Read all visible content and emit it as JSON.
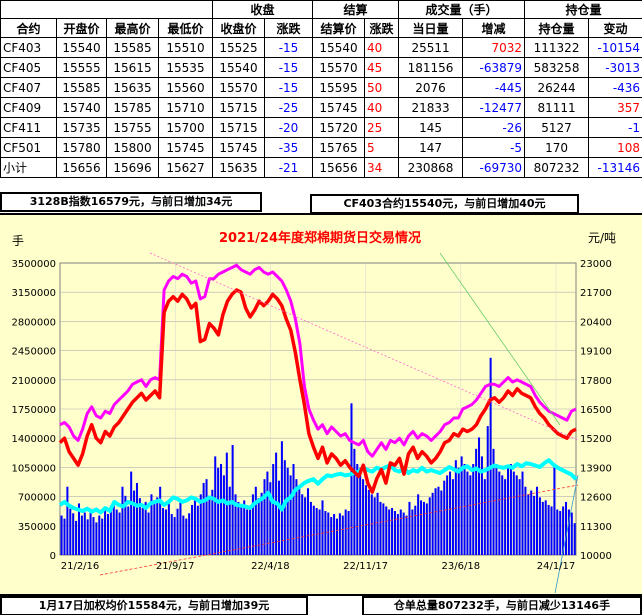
{
  "table": {
    "headers_top": [
      "收盘",
      "结算",
      "成交量（手）",
      "持仓量"
    ],
    "headers": [
      "合约",
      "开盘价",
      "最高价",
      "最低价",
      "收盘价",
      "涨跌",
      "结算价",
      "涨跌",
      "当日量",
      "增减",
      "持仓量",
      "变动"
    ],
    "rows": [
      [
        "CF403",
        "15540",
        "15585",
        "15510",
        "15525",
        "-15",
        "15540",
        "40",
        "25511",
        "7032",
        "111322",
        "-10154"
      ],
      [
        "CF405",
        "15555",
        "15615",
        "15535",
        "15540",
        "-15",
        "15570",
        "45",
        "181156",
        "-63879",
        "583258",
        "-3013"
      ],
      [
        "CF407",
        "15585",
        "15635",
        "15560",
        "15570",
        "-15",
        "15595",
        "50",
        "2076",
        "-445",
        "26244",
        "-436"
      ],
      [
        "CF409",
        "15740",
        "15785",
        "15710",
        "15715",
        "-25",
        "15745",
        "40",
        "21833",
        "-12477",
        "81111",
        "357"
      ],
      [
        "CF411",
        "15735",
        "15755",
        "15700",
        "15715",
        "-20",
        "15720",
        "25",
        "145",
        "-26",
        "5127",
        "-1"
      ],
      [
        "CF501",
        "15780",
        "15800",
        "15745",
        "15745",
        "-35",
        "15765",
        "5",
        "147",
        "-5",
        "170",
        "108"
      ],
      [
        "小计",
        "15656",
        "15696",
        "15627",
        "15635",
        "-21",
        "15656",
        "34",
        "230868",
        "-69730",
        "807232",
        "-13146"
      ]
    ]
  },
  "info": {
    "index_text": "3128B指数16579元，与前日增加34元",
    "contract_text": "CF403合约15540元，与前日增加40元",
    "avg_text": "1月17日加权均价15584元，与前日增加39元",
    "oi_text": "仓单总量807232手，与前日减少13146手"
  },
  "colors": {
    "background": "#ffffcc",
    "volume": "#0000ff",
    "price": "#ff0000",
    "high_line": "#ff00ff",
    "open_interest": "#00ffff",
    "title": "#ff0000"
  },
  "chart_data": {
    "type": "line",
    "title": "2021/24年度郑棉期货日交易情况",
    "ylabel": "手",
    "y2label": "元/吨",
    "ylim": [
      0,
      3850000
    ],
    "y2lim": [
      10000,
      23000
    ],
    "yticks": [
      "0",
      "350000",
      "700000",
      "1050000",
      "1400000",
      "1750000",
      "2100000",
      "2450000",
      "2800000",
      "3150000",
      "3500000"
    ],
    "y2ticks": [
      "10000",
      "11300",
      "12600",
      "13900",
      "15200",
      "16500",
      "17800",
      "19100",
      "20400",
      "21700",
      "23000"
    ],
    "xticks": [
      "21/2/16",
      "21/9/17",
      "22/4/18",
      "22/11/17",
      "23/6/18",
      "24/1/17"
    ],
    "series": [
      {
        "key": "volume",
        "type": "bar",
        "axis": "left",
        "values": [
          520000,
          480000,
          900000,
          610000,
          550000,
          450000,
          680000,
          520000,
          560000,
          470000,
          610000,
          500000,
          430000,
          520000,
          480000,
          600000,
          540000,
          650000,
          700000,
          600000,
          560000,
          900000,
          780000,
          640000,
          1100000,
          850000,
          950000,
          750000,
          620000,
          700000,
          560000,
          800000,
          720000,
          760000,
          900000,
          620000,
          600000,
          680000,
          540000,
          500000,
          610000,
          700000,
          520000,
          480000,
          550000,
          660000,
          720000,
          650000,
          800000,
          950000,
          1000000,
          780000,
          860000,
          1300000,
          1150000,
          1200000,
          1050000,
          1350000,
          900000,
          1450000,
          800000,
          700000,
          640000,
          720000,
          600000,
          650000,
          800000,
          900000,
          750000,
          820000,
          1000000,
          1100000,
          960000,
          1200000,
          1350000,
          980000,
          1500000,
          1250000,
          1150000,
          1050000,
          1200000,
          1000000,
          900000,
          800000,
          760000,
          880000,
          700000,
          650000,
          620000,
          600000,
          720000,
          580000,
          560000,
          500000,
          540000,
          480000,
          550000,
          520000,
          600000,
          580000,
          2000000,
          1400000,
          1200000,
          1150000,
          1000000,
          920000,
          860000,
          800000,
          760000,
          820000,
          700000,
          680000,
          640000,
          600000,
          620000,
          580000,
          540000,
          600000,
          560000,
          520000,
          700000,
          600000,
          650000,
          800000,
          720000,
          700000,
          680000,
          760000,
          820000,
          880000,
          900000,
          850000,
          980000,
          1050000,
          1100000,
          1000000,
          1250000,
          1150000,
          1300000,
          1200000,
          1100000,
          1050000,
          1200000,
          1400000,
          1550000,
          1300000,
          1000000,
          1700000,
          2600000,
          1400000,
          1200000,
          1100000,
          1050000,
          1000000,
          1150000,
          1200000,
          1100000,
          1050000,
          1000000,
          1100000,
          900000,
          800000,
          850000,
          780000,
          900000,
          760000,
          700000,
          720000,
          660000,
          640000,
          1200000,
          600000,
          580000,
          640000,
          700000,
          600000,
          560000,
          420000
        ]
      },
      {
        "key": "price",
        "type": "line",
        "axis": "right",
        "values": [
          15000,
          15200,
          14600,
          14300,
          14000,
          14500,
          15300,
          15800,
          15200,
          15000,
          15500,
          15300,
          15700,
          15900,
          16200,
          16500,
          16800,
          17000,
          17200,
          16900,
          17100,
          17300,
          17000,
          20800,
          21300,
          21500,
          21300,
          21600,
          21400,
          21000,
          21200,
          19500,
          19600,
          20300,
          20100,
          19800,
          20700,
          21300,
          21600,
          21800,
          21700,
          21000,
          20600,
          20900,
          21300,
          21100,
          21300,
          21600,
          21400,
          21100,
          20500,
          20000,
          19000,
          17800,
          16700,
          15400,
          14800,
          14300,
          14800,
          14100,
          14500,
          14300,
          14000,
          14200,
          13900,
          13700,
          13500,
          14000,
          13200,
          12800,
          13400,
          13800,
          13200,
          14100,
          14000,
          14300,
          13600,
          14500,
          14800,
          14300,
          14600,
          14400,
          14100,
          14300,
          14600,
          15000,
          15100,
          15400,
          15300,
          15600,
          15500,
          15600,
          15800,
          16200,
          16500,
          16900,
          17000,
          16800,
          17000,
          17300,
          17100,
          17400,
          17200,
          17100,
          17000,
          16600,
          16300,
          16100,
          15800,
          15600,
          15400,
          15300,
          15200,
          15500,
          15600
        ]
      },
      {
        "key": "price_high",
        "type": "line",
        "axis": "right",
        "values": [
          15800,
          15900,
          15700,
          15300,
          15100,
          15600,
          16300,
          16600,
          16200,
          16100,
          16400,
          16300,
          16700,
          16900,
          17100,
          17300,
          17600,
          17700,
          17800,
          17500,
          17800,
          17900,
          17800,
          21800,
          22200,
          22400,
          22300,
          22500,
          22400,
          22100,
          22200,
          21400,
          21500,
          22300,
          22300,
          22500,
          22600,
          22700,
          22800,
          22900,
          22700,
          22600,
          22500,
          22700,
          22800,
          22600,
          22500,
          22600,
          22400,
          22200,
          21800,
          21300,
          20500,
          19400,
          17500,
          16500,
          16000,
          15600,
          15800,
          15400,
          15700,
          15500,
          15300,
          15400,
          15100,
          15000,
          14900,
          15100,
          14600,
          14400,
          14700,
          15000,
          14700,
          15100,
          15000,
          15200,
          14900,
          15300,
          15500,
          15200,
          15400,
          15300,
          15100,
          15300,
          15500,
          15800,
          15900,
          16100,
          16100,
          16500,
          16600,
          16700,
          16900,
          17200,
          17500,
          17600,
          17600,
          17500,
          17700,
          17900,
          17700,
          17800,
          17700,
          17600,
          17500,
          17100,
          16800,
          16600,
          16400,
          16300,
          16200,
          16100,
          16000,
          16400,
          16500
        ]
      },
      {
        "key": "open_interest",
        "type": "line",
        "axis": "left",
        "values": [
          660000,
          700000,
          650000,
          620000,
          600000,
          580000,
          610000,
          570000,
          600000,
          560000,
          620000,
          580000,
          700000,
          660000,
          640000,
          700000,
          680000,
          650000,
          660000,
          620000,
          680000,
          700000,
          720000,
          660000,
          700000,
          760000,
          740000,
          700000,
          720000,
          760000,
          740000,
          700000,
          720000,
          760000,
          740000,
          700000,
          720000,
          680000,
          700000,
          660000,
          650000,
          640000,
          620000,
          680000,
          720000,
          760000,
          820000,
          700000,
          680000,
          600000,
          720000,
          760000,
          860000,
          900000,
          950000,
          980000,
          1000000,
          940000,
          1000000,
          1050000,
          1040000,
          1060000,
          1070000,
          1050000,
          1060000,
          1080000,
          1100000,
          1150000,
          1120000,
          1100000,
          1150000,
          1130000,
          1160000,
          1180000,
          1120000,
          1100000,
          1150000,
          1080000,
          1120000,
          1100000,
          1150000,
          1100000,
          1120000,
          1100000,
          1080000,
          1120000,
          1160000,
          1130000,
          1100000,
          1150000,
          1170000,
          1120000,
          1140000,
          1100000,
          1120000,
          1150000,
          1180000,
          1160000,
          1150000,
          1170000,
          1150000,
          1200000,
          1170000,
          1210000,
          1200000,
          1180000,
          1160000,
          1210000,
          1250000,
          1190000,
          1150000,
          1120000,
          1090000,
          1060000,
          1000000
        ]
      }
    ],
    "grid": true,
    "legend": "none"
  }
}
